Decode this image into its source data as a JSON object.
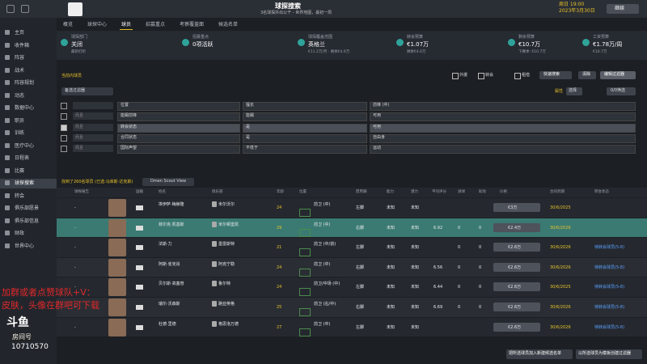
{
  "topbar": {
    "title": "球探搜索",
    "subtitle": "3名球探外出公干 - 世界地图，最初一周",
    "day": "周日 19:00",
    "date": "2023年3月30日",
    "continue": "继续"
  },
  "sidebar": [
    "主页",
    "收件箱",
    "阵容",
    "战术",
    "阵容规划",
    "动态",
    "数据中心",
    "职员",
    "训练",
    "医疗中心",
    "日程表",
    "比赛",
    "球探搜索",
    "转会",
    "俱乐部愿景",
    "俱乐部信息",
    "财政",
    "世界中心"
  ],
  "sidebar_active": 12,
  "tabs": [
    "概览",
    "球探中心",
    "球员",
    "招募重点",
    "考察覆盖面",
    "候选名单"
  ],
  "tab_active": 2,
  "summary": [
    {
      "label": "球探部门",
      "value": "关闭",
      "sub": "最新打听"
    },
    {
      "label": "招募重点",
      "value": "0项活跃"
    },
    {
      "label": "球探覆盖范围",
      "value": "英格兰",
      "sub": "€11.2万/月 · 剩余€4.6万"
    },
    {
      "label": "转会预算",
      "value": "€1.07万",
      "sub": "剩余€4.6万"
    },
    {
      "label": "剩余预算",
      "value": "€10.7万",
      "sub": "下赛季: €10.7万"
    },
    {
      "label": "工资预算",
      "value": "€1.78万/周",
      "sub": "€10.7万"
    }
  ],
  "filter": {
    "heading": "当前内球员",
    "preset": "备选过滤器",
    "toggles": [
      "外援",
      "转会",
      "租借"
    ],
    "buttons": [
      "快速搜索",
      "清除",
      "编辑过滤器"
    ],
    "attr_label": "属性",
    "select": "选择",
    "count": "0/0筛选",
    "rows": [
      {
        "field": "位置",
        "op": "擅长",
        "value": "前锋 (中)"
      },
      {
        "conj": "而且",
        "field": "能踢前锋",
        "op": "能踢",
        "value": "可用"
      },
      {
        "conj": "而且",
        "field": "转会状态",
        "op": "是",
        "value": "可用",
        "checked": true
      },
      {
        "conj": "而且",
        "field": "合同状态",
        "op": "是",
        "value": "自由身"
      },
      {
        "conj": "而且",
        "field": "国际声望",
        "op": "不低于",
        "value": "运动"
      }
    ]
  },
  "results": {
    "found": "找到了260名球员 (已选:马库斯·达克斯)",
    "view": "Dmen Scout View",
    "columns": {
      "report": "球探报告",
      "nat": "国籍",
      "name": "姓名",
      "club": "俱乐部",
      "age": "年龄",
      "position": "位置",
      "foot": "惯用脚",
      "ability": "能力",
      "potential": "潜力",
      "rating": "平均评分",
      "goals": "进球",
      "assists": "助攻",
      "value": "价格",
      "expiry": "合同到期",
      "status": "转会状态"
    },
    "selected": 1,
    "rows": [
      {
        "report": "-",
        "name": "埃伊萨·梅赫隆",
        "club": "米尔沃尔",
        "age": 24,
        "position": "前卫 (中)",
        "foot": "左脚",
        "ability": "未知",
        "potential": "未知",
        "value": "€3万",
        "expiry": "30/6/2025"
      },
      {
        "report": "-",
        "name": "菲尔克·凯基斯",
        "club": "米尔顿堡凯",
        "age": 29,
        "position": "前卫 (中)",
        "foot": "右脚",
        "ability": "未知",
        "potential": "未知",
        "rating": 6.92,
        "goals": 0,
        "assists": 0,
        "value": "€2.4万",
        "expiry": "30/6/2026"
      },
      {
        "report": "-",
        "name": "法斯·力",
        "club": "墨雷斯特",
        "age": 21,
        "position": "前卫 (中/前)",
        "foot": "左脚",
        "ability": "未知",
        "potential": "未知",
        "goals": 0,
        "assists": 0,
        "value": "€2.6万",
        "expiry": "30/6/2026",
        "status": "待转会球员(5-8)"
      },
      {
        "report": "-",
        "name": "阿斯·雀克肖",
        "club": "阿克宁勒",
        "age": 24,
        "position": "前卫 (中)",
        "foot": "右脚",
        "ability": "未知",
        "potential": "未知",
        "rating": 6.56,
        "goals": 0,
        "assists": 0,
        "value": "€2.6万",
        "expiry": "30/6/2026",
        "status": "待转会球员(5-8)"
      },
      {
        "report": "-",
        "name": "贝尔斯·高塞普",
        "club": "鲁尔特",
        "age": 24,
        "position": "前卫/中场 (中)",
        "foot": "左脚",
        "ability": "未知",
        "potential": "未知",
        "rating": 6.44,
        "goals": 0,
        "assists": 0,
        "value": "€2.6万",
        "expiry": "30/6/2025",
        "status": "待转会球员(5-8)"
      },
      {
        "report": "-",
        "name": "瑞尔·沃森斯",
        "club": "路亚英格",
        "age": 25,
        "position": "前卫 (右/中)",
        "foot": "右脚",
        "ability": "未知",
        "potential": "未知",
        "rating": 6.69,
        "goals": 0,
        "assists": 0,
        "value": "€2.6万",
        "expiry": "30/6/2026",
        "status": "待转会球员(5-8)"
      },
      {
        "report": "-",
        "name": "杜德·里德",
        "club": "格思洛万德",
        "age": 27,
        "position": "前卫 (中)",
        "foot": "左脚",
        "ability": "未知",
        "potential": "未知",
        "value": "€2.6万",
        "expiry": "30/6/2026",
        "status": "待转会球员(5-8)"
      }
    ]
  },
  "footer_buttons": [
    "把所选球员加入新建候选名单",
    "以所选球员为模板创建过滤器"
  ],
  "overlay": {
    "promo1": "加群或者点赞球队+V：",
    "promo2": "皮肤，头像在群吧可下载",
    "logo": "斗鱼",
    "room": "房间号",
    "room_id": "10710570"
  }
}
